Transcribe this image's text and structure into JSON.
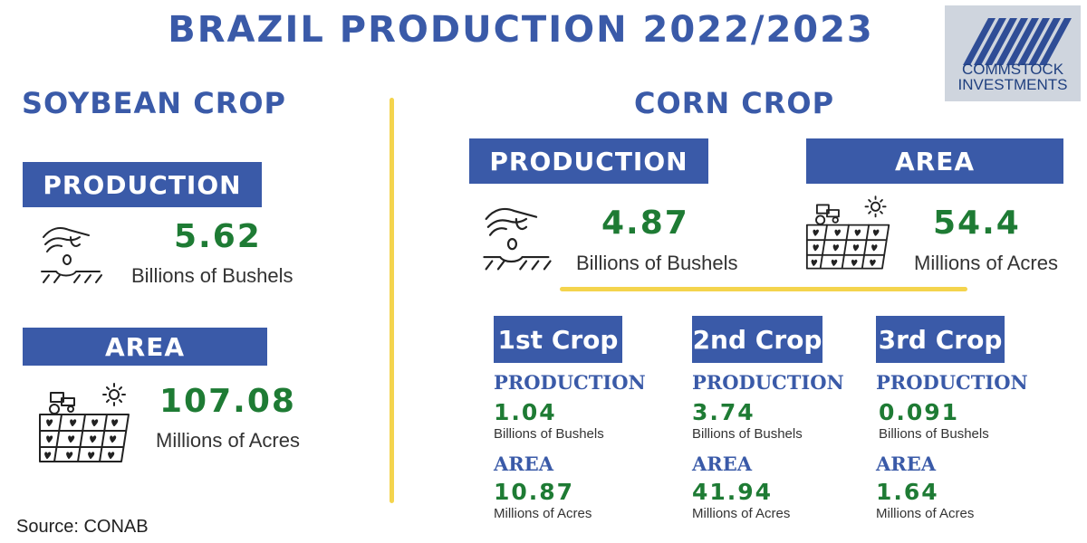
{
  "title": "BRAZIL PRODUCTION 2022/2023",
  "logo": {
    "line1": "COMMSTOCK",
    "line2": "INVESTMENTS"
  },
  "soybean": {
    "heading": "SOYBEAN CROP",
    "production": {
      "label": "PRODUCTION",
      "value": "5.62",
      "unit": "Billions of Bushels"
    },
    "area": {
      "label": "AREA",
      "value": "107.08",
      "unit": "Millions of Acres"
    }
  },
  "corn": {
    "heading": "CORN CROP",
    "production": {
      "label": "PRODUCTION",
      "value": "4.87",
      "unit": "Billions of Bushels"
    },
    "area": {
      "label": "AREA",
      "value": "54.4",
      "unit": "Millions of Acres"
    },
    "crops": [
      {
        "name": "1st Crop",
        "production_label": "PRODUCTION",
        "production_value": "1.04",
        "production_unit": "Billions of Bushels",
        "area_label": "AREA",
        "area_value": "10.87",
        "area_unit": "Millions of Acres"
      },
      {
        "name": "2nd Crop",
        "production_label": "PRODUCTION",
        "production_value": "3.74",
        "production_unit": "Billions of Bushels",
        "area_label": "AREA",
        "area_value": "41.94",
        "area_unit": "Millions of Acres"
      },
      {
        "name": "3rd Crop",
        "production_label": "PRODUCTION",
        "production_value": "0.091",
        "production_unit": "Billions of Bushels",
        "area_label": "AREA",
        "area_value": "1.64",
        "area_unit": "Millions of Acres"
      }
    ]
  },
  "source": "Source: CONAB",
  "colors": {
    "blue": "#3a5aa8",
    "green": "#1e7b34",
    "yellow": "#f4d44d",
    "logo_bg": "#cfd5de"
  },
  "icons": {
    "production": "hand-planting-seed-icon",
    "area": "tractor-field-sun-icon"
  }
}
